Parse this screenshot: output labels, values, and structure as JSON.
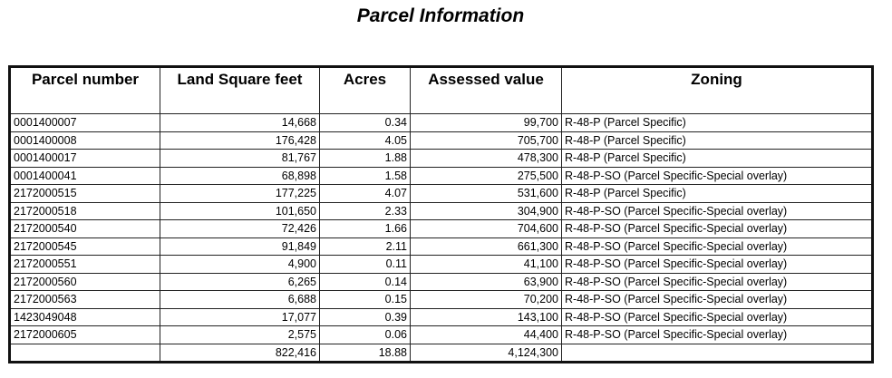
{
  "title": "Parcel Information",
  "columns": [
    "Parcel number",
    "Land Square feet",
    "Acres",
    "Assessed value",
    "Zoning"
  ],
  "rows": [
    [
      "0001400007",
      "14,668",
      "0.34",
      "99,700",
      "R-48-P (Parcel Specific)"
    ],
    [
      "0001400008",
      "176,428",
      "4.05",
      "705,700",
      "R-48-P (Parcel Specific)"
    ],
    [
      "0001400017",
      "81,767",
      "1.88",
      "478,300",
      "R-48-P (Parcel Specific)"
    ],
    [
      "0001400041",
      "68,898",
      "1.58",
      "275,500",
      "R-48-P-SO (Parcel Specific-Special overlay)"
    ],
    [
      "2172000515",
      "177,225",
      "4.07",
      "531,600",
      "R-48-P (Parcel Specific)"
    ],
    [
      "2172000518",
      "101,650",
      "2.33",
      "304,900",
      "R-48-P-SO (Parcel Specific-Special overlay)"
    ],
    [
      "2172000540",
      "72,426",
      "1.66",
      "704,600",
      "R-48-P-SO (Parcel Specific-Special overlay)"
    ],
    [
      "2172000545",
      "91,849",
      "2.11",
      "661,300",
      "R-48-P-SO (Parcel Specific-Special overlay)"
    ],
    [
      "2172000551",
      "4,900",
      "0.11",
      "41,100",
      "R-48-P-SO (Parcel Specific-Special overlay)"
    ],
    [
      "2172000560",
      "6,265",
      "0.14",
      "63,900",
      "R-48-P-SO (Parcel Specific-Special overlay)"
    ],
    [
      "2172000563",
      "6,688",
      "0.15",
      "70,200",
      "R-48-P-SO (Parcel Specific-Special overlay)"
    ],
    [
      "1423049048",
      "17,077",
      "0.39",
      "143,100",
      "R-48-P-SO (Parcel Specific-Special overlay)"
    ],
    [
      "2172000605",
      "2,575",
      "0.06",
      "44,400",
      "R-48-P-SO (Parcel Specific-Special overlay)"
    ]
  ],
  "totals": [
    "",
    "822,416",
    "18.88",
    "4,124,300",
    ""
  ]
}
